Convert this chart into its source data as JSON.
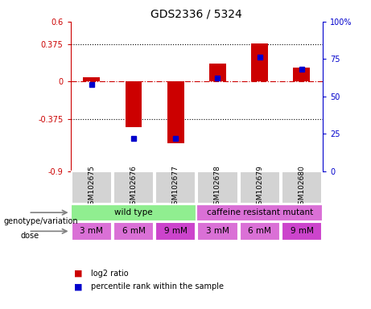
{
  "title": "GDS2336 / 5324",
  "samples": [
    "GSM102675",
    "GSM102676",
    "GSM102677",
    "GSM102678",
    "GSM102679",
    "GSM102680"
  ],
  "log2_ratio": [
    0.04,
    -0.46,
    -0.62,
    0.18,
    0.38,
    0.14
  ],
  "percentile_rank": [
    58,
    22,
    22,
    62,
    76,
    68
  ],
  "ylim_left": [
    -0.9,
    0.6
  ],
  "ylim_right": [
    0,
    100
  ],
  "yticks_left": [
    -0.9,
    -0.375,
    0,
    0.375,
    0.6
  ],
  "yticks_right": [
    0,
    25,
    50,
    75,
    100
  ],
  "ytick_labels_left": [
    "-0.9",
    "-0.375",
    "0",
    "0.375",
    "0.6"
  ],
  "ytick_labels_right": [
    "0",
    "25",
    "50",
    "75",
    "100%"
  ],
  "hlines": [
    0.375,
    -0.375
  ],
  "bar_color": "#cc0000",
  "dot_color": "#0000cc",
  "genotype_groups": [
    {
      "label": "wild type",
      "start": 0,
      "end": 3,
      "color": "#90ee90"
    },
    {
      "label": "caffeine resistant mutant",
      "start": 3,
      "end": 6,
      "color": "#da70d6"
    }
  ],
  "dose_labels": [
    "3 mM",
    "6 mM",
    "9 mM",
    "3 mM",
    "6 mM",
    "9 mM"
  ],
  "dose_colors": [
    "#da70d6",
    "#da70d6",
    "#cc44cc",
    "#da70d6",
    "#da70d6",
    "#cc44cc"
  ],
  "genotype_label": "genotype/variation",
  "dose_label": "dose",
  "legend_items": [
    {
      "label": "log2 ratio",
      "color": "#cc0000"
    },
    {
      "label": "percentile rank within the sample",
      "color": "#0000cc"
    }
  ]
}
